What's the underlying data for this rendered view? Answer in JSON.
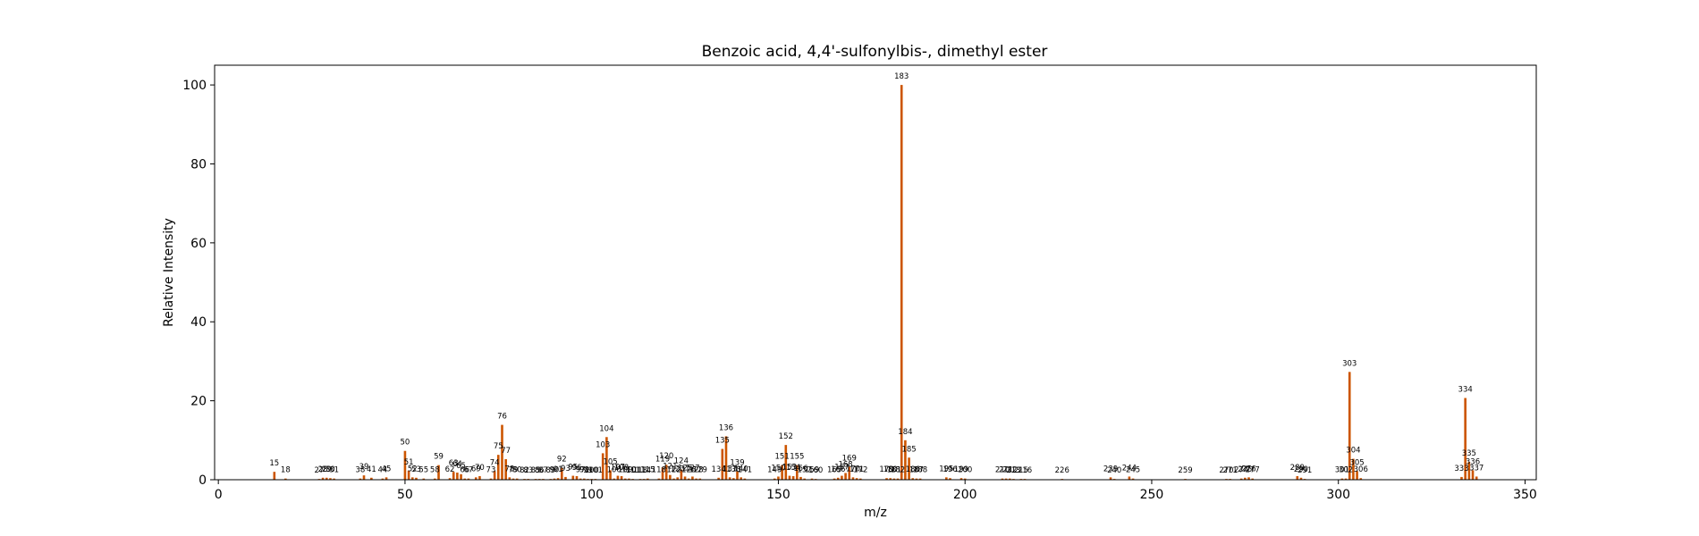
{
  "chart_data": {
    "type": "bar",
    "title": "Benzoic acid, 4,4'-sulfonylbis-, dimethyl ester",
    "xlabel": "m/z",
    "ylabel": "Relative Intensity",
    "xlim": [
      -1,
      353
    ],
    "ylim": [
      0,
      105
    ],
    "xticks": [
      0,
      50,
      100,
      150,
      200,
      250,
      300,
      350
    ],
    "yticks": [
      0,
      20,
      40,
      60,
      80,
      100
    ],
    "bar_color": "#cc5500",
    "peaks": [
      {
        "mz": 15,
        "intensity": 2.0
      },
      {
        "mz": 18,
        "intensity": 0.3
      },
      {
        "mz": 27,
        "intensity": 0.2
      },
      {
        "mz": 28,
        "intensity": 0.5
      },
      {
        "mz": 29,
        "intensity": 0.5
      },
      {
        "mz": 30,
        "intensity": 0.4
      },
      {
        "mz": 31,
        "intensity": 0.3
      },
      {
        "mz": 38,
        "intensity": 0.3
      },
      {
        "mz": 39,
        "intensity": 1.1
      },
      {
        "mz": 41,
        "intensity": 0.5
      },
      {
        "mz": 44,
        "intensity": 0.3
      },
      {
        "mz": 45,
        "intensity": 0.6
      },
      {
        "mz": 50,
        "intensity": 7.3
      },
      {
        "mz": 51,
        "intensity": 2.3
      },
      {
        "mz": 52,
        "intensity": 0.6
      },
      {
        "mz": 53,
        "intensity": 0.5
      },
      {
        "mz": 55,
        "intensity": 0.3
      },
      {
        "mz": 58,
        "intensity": 0.3
      },
      {
        "mz": 59,
        "intensity": 3.7
      },
      {
        "mz": 62,
        "intensity": 0.4
      },
      {
        "mz": 63,
        "intensity": 2.0
      },
      {
        "mz": 64,
        "intensity": 1.8
      },
      {
        "mz": 65,
        "intensity": 1.4
      },
      {
        "mz": 66,
        "intensity": 0.3
      },
      {
        "mz": 67,
        "intensity": 0.3
      },
      {
        "mz": 69,
        "intensity": 0.6
      },
      {
        "mz": 70,
        "intensity": 0.9
      },
      {
        "mz": 73,
        "intensity": 0.3
      },
      {
        "mz": 74,
        "intensity": 2.2
      },
      {
        "mz": 75,
        "intensity": 6.3
      },
      {
        "mz": 76,
        "intensity": 13.9
      },
      {
        "mz": 77,
        "intensity": 5.2
      },
      {
        "mz": 78,
        "intensity": 0.6
      },
      {
        "mz": 79,
        "intensity": 0.3
      },
      {
        "mz": 80,
        "intensity": 0.3
      },
      {
        "mz": 82,
        "intensity": 0.2
      },
      {
        "mz": 83,
        "intensity": 0.2
      },
      {
        "mz": 85,
        "intensity": 0.2
      },
      {
        "mz": 86,
        "intensity": 0.2
      },
      {
        "mz": 87,
        "intensity": 0.2
      },
      {
        "mz": 89,
        "intensity": 0.2
      },
      {
        "mz": 90,
        "intensity": 0.3
      },
      {
        "mz": 91,
        "intensity": 0.4
      },
      {
        "mz": 92,
        "intensity": 3.0
      },
      {
        "mz": 93,
        "intensity": 0.7
      },
      {
        "mz": 95,
        "intensity": 1.0
      },
      {
        "mz": 96,
        "intensity": 0.9
      },
      {
        "mz": 97,
        "intensity": 0.3
      },
      {
        "mz": 98,
        "intensity": 0.3
      },
      {
        "mz": 99,
        "intensity": 0.2
      },
      {
        "mz": 100,
        "intensity": 0.2
      },
      {
        "mz": 101,
        "intensity": 0.2
      },
      {
        "mz": 103,
        "intensity": 6.7
      },
      {
        "mz": 104,
        "intensity": 10.8
      },
      {
        "mz": 105,
        "intensity": 2.4
      },
      {
        "mz": 106,
        "intensity": 0.3
      },
      {
        "mz": 107,
        "intensity": 1.0
      },
      {
        "mz": 108,
        "intensity": 0.9
      },
      {
        "mz": 109,
        "intensity": 0.3
      },
      {
        "mz": 110,
        "intensity": 0.3
      },
      {
        "mz": 111,
        "intensity": 0.2
      },
      {
        "mz": 113,
        "intensity": 0.2
      },
      {
        "mz": 114,
        "intensity": 0.2
      },
      {
        "mz": 115,
        "intensity": 0.3
      },
      {
        "mz": 118,
        "intensity": 0.3
      },
      {
        "mz": 119,
        "intensity": 3.1
      },
      {
        "mz": 120,
        "intensity": 3.8
      },
      {
        "mz": 121,
        "intensity": 1.2
      },
      {
        "mz": 122,
        "intensity": 0.3
      },
      {
        "mz": 123,
        "intensity": 0.6
      },
      {
        "mz": 124,
        "intensity": 2.6
      },
      {
        "mz": 125,
        "intensity": 0.8
      },
      {
        "mz": 126,
        "intensity": 0.3
      },
      {
        "mz": 127,
        "intensity": 0.8
      },
      {
        "mz": 128,
        "intensity": 0.3
      },
      {
        "mz": 129,
        "intensity": 0.3
      },
      {
        "mz": 134,
        "intensity": 0.5
      },
      {
        "mz": 135,
        "intensity": 7.8
      },
      {
        "mz": 136,
        "intensity": 11.0
      },
      {
        "mz": 137,
        "intensity": 0.6
      },
      {
        "mz": 138,
        "intensity": 0.4
      },
      {
        "mz": 139,
        "intensity": 2.1
      },
      {
        "mz": 140,
        "intensity": 0.6
      },
      {
        "mz": 141,
        "intensity": 0.3
      },
      {
        "mz": 149,
        "intensity": 0.3
      },
      {
        "mz": 150,
        "intensity": 0.8
      },
      {
        "mz": 151,
        "intensity": 3.7
      },
      {
        "mz": 152,
        "intensity": 8.8
      },
      {
        "mz": 153,
        "intensity": 1.0
      },
      {
        "mz": 154,
        "intensity": 0.9
      },
      {
        "mz": 155,
        "intensity": 3.7
      },
      {
        "mz": 156,
        "intensity": 0.7
      },
      {
        "mz": 157,
        "intensity": 0.3
      },
      {
        "mz": 159,
        "intensity": 0.3
      },
      {
        "mz": 160,
        "intensity": 0.2
      },
      {
        "mz": 165,
        "intensity": 0.3
      },
      {
        "mz": 166,
        "intensity": 0.5
      },
      {
        "mz": 167,
        "intensity": 1.0
      },
      {
        "mz": 168,
        "intensity": 1.7
      },
      {
        "mz": 169,
        "intensity": 3.3
      },
      {
        "mz": 170,
        "intensity": 0.6
      },
      {
        "mz": 171,
        "intensity": 0.4
      },
      {
        "mz": 172,
        "intensity": 0.3
      },
      {
        "mz": 179,
        "intensity": 0.4
      },
      {
        "mz": 180,
        "intensity": 0.4
      },
      {
        "mz": 181,
        "intensity": 0.3
      },
      {
        "mz": 182,
        "intensity": 0.3
      },
      {
        "mz": 183,
        "intensity": 100.0
      },
      {
        "mz": 184,
        "intensity": 10.0
      },
      {
        "mz": 185,
        "intensity": 5.6
      },
      {
        "mz": 186,
        "intensity": 0.4
      },
      {
        "mz": 187,
        "intensity": 0.3
      },
      {
        "mz": 188,
        "intensity": 0.3
      },
      {
        "mz": 195,
        "intensity": 0.6
      },
      {
        "mz": 196,
        "intensity": 0.4
      },
      {
        "mz": 199,
        "intensity": 0.4
      },
      {
        "mz": 200,
        "intensity": 0.3
      },
      {
        "mz": 210,
        "intensity": 0.3
      },
      {
        "mz": 211,
        "intensity": 0.3
      },
      {
        "mz": 212,
        "intensity": 0.3
      },
      {
        "mz": 213,
        "intensity": 0.2
      },
      {
        "mz": 215,
        "intensity": 0.2
      },
      {
        "mz": 216,
        "intensity": 0.2
      },
      {
        "mz": 226,
        "intensity": 0.2
      },
      {
        "mz": 239,
        "intensity": 0.6
      },
      {
        "mz": 240,
        "intensity": 0.2
      },
      {
        "mz": 244,
        "intensity": 0.8
      },
      {
        "mz": 245,
        "intensity": 0.3
      },
      {
        "mz": 259,
        "intensity": 0.2
      },
      {
        "mz": 270,
        "intensity": 0.2
      },
      {
        "mz": 271,
        "intensity": 0.2
      },
      {
        "mz": 274,
        "intensity": 0.3
      },
      {
        "mz": 275,
        "intensity": 0.5
      },
      {
        "mz": 276,
        "intensity": 0.6
      },
      {
        "mz": 277,
        "intensity": 0.3
      },
      {
        "mz": 289,
        "intensity": 0.9
      },
      {
        "mz": 290,
        "intensity": 0.5
      },
      {
        "mz": 291,
        "intensity": 0.2
      },
      {
        "mz": 301,
        "intensity": 0.3
      },
      {
        "mz": 302,
        "intensity": 0.3
      },
      {
        "mz": 303,
        "intensity": 27.3
      },
      {
        "mz": 304,
        "intensity": 5.3
      },
      {
        "mz": 305,
        "intensity": 2.2
      },
      {
        "mz": 306,
        "intensity": 0.4
      },
      {
        "mz": 333,
        "intensity": 0.7
      },
      {
        "mz": 334,
        "intensity": 20.7
      },
      {
        "mz": 335,
        "intensity": 4.5
      },
      {
        "mz": 336,
        "intensity": 2.4
      },
      {
        "mz": 337,
        "intensity": 0.8
      }
    ]
  }
}
